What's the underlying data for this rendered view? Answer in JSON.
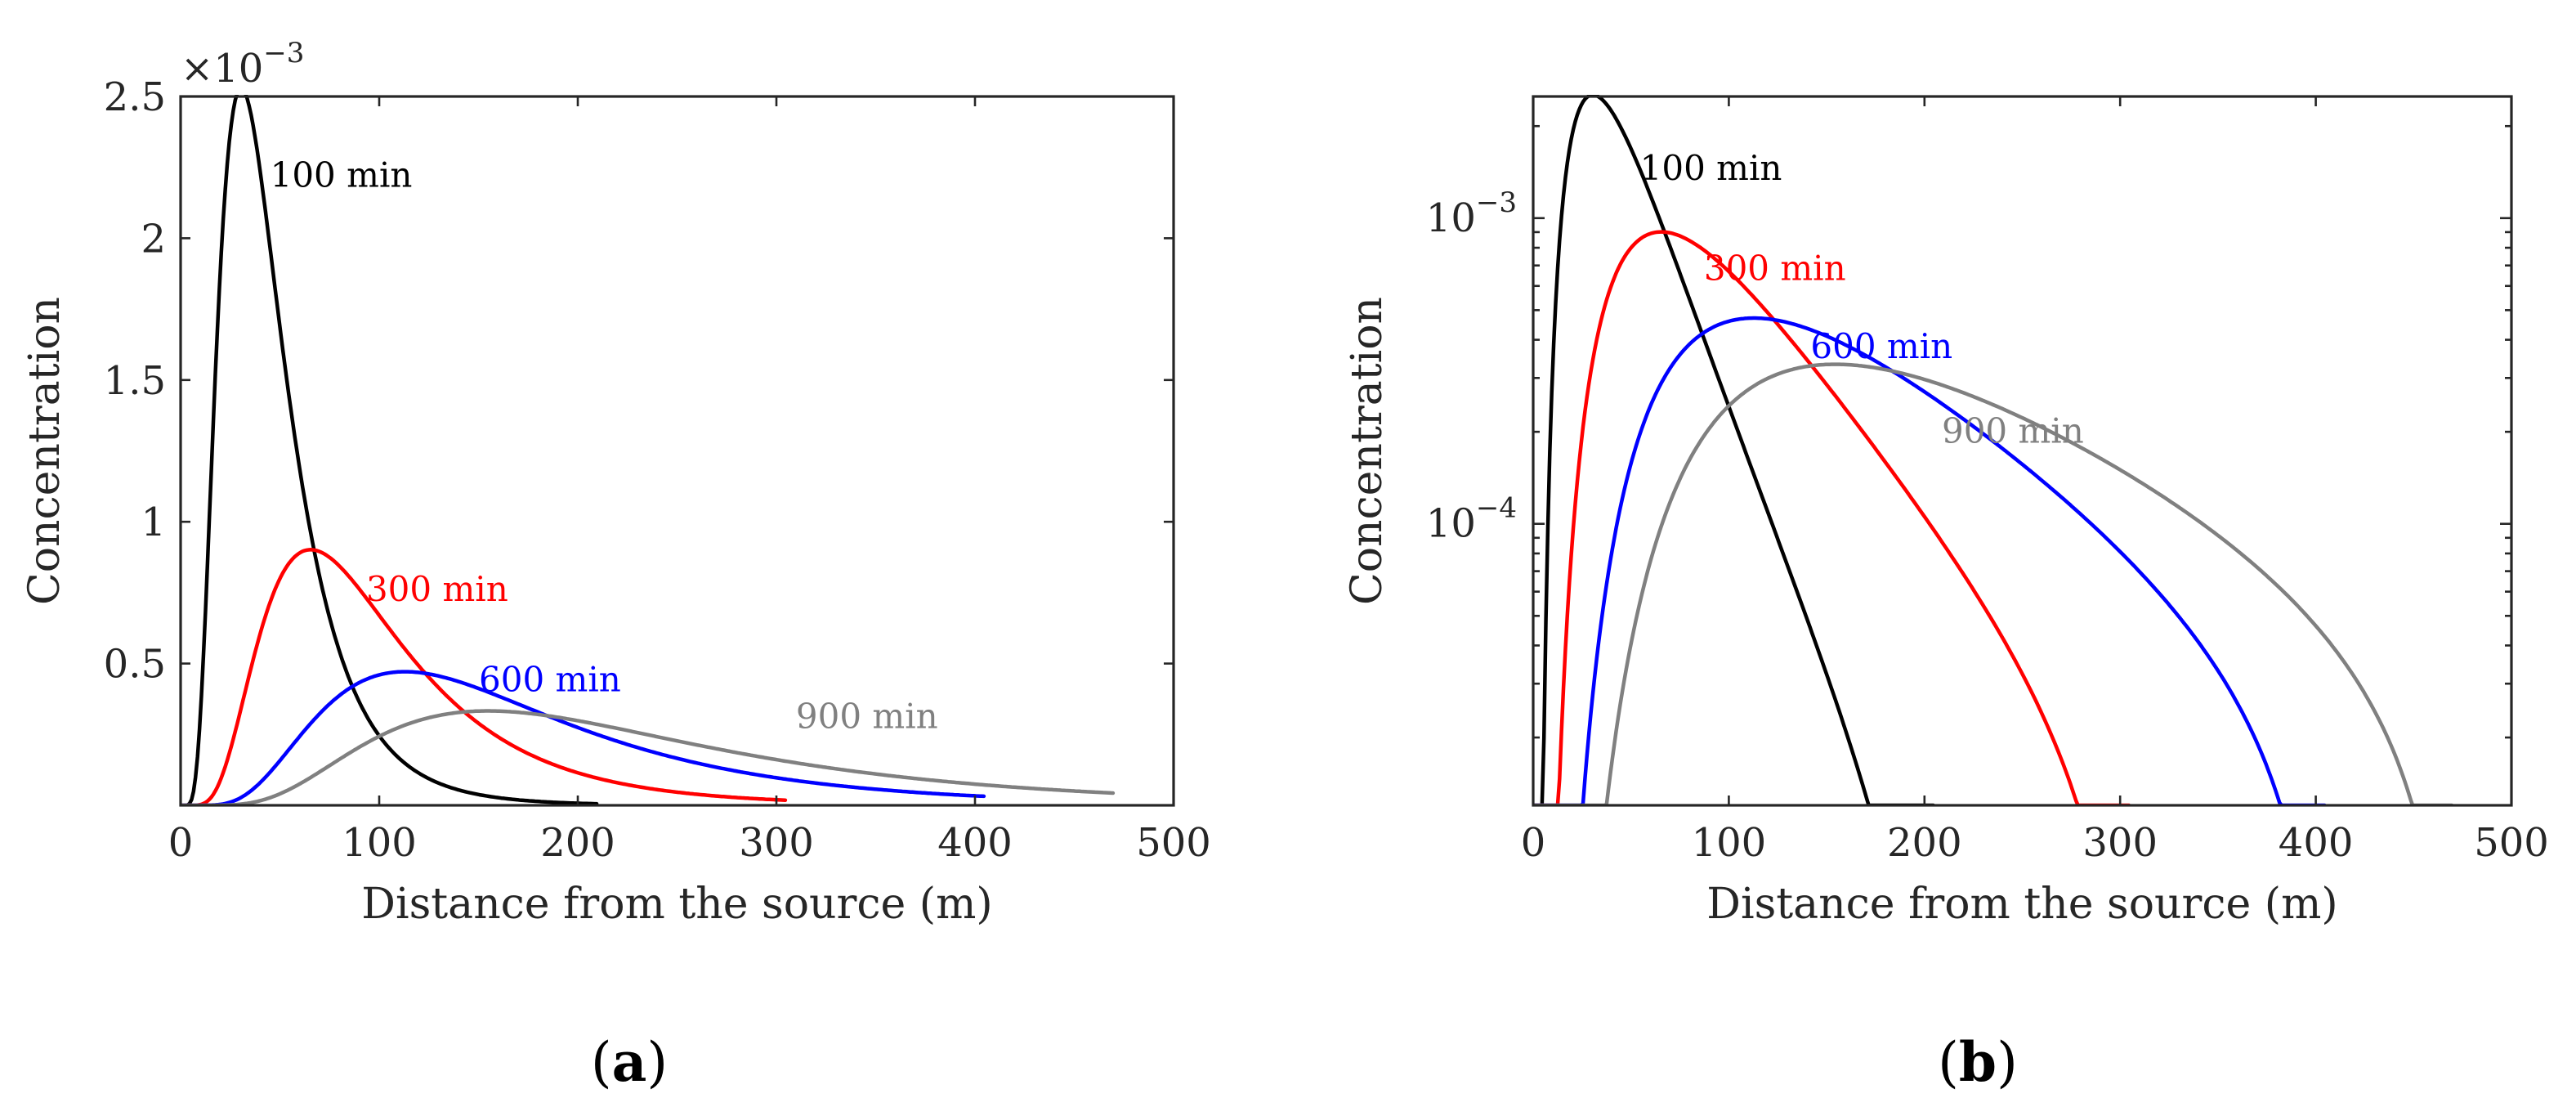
{
  "chart_data": [
    {
      "panel": "(a)",
      "panel_letter": "a",
      "type": "line",
      "xscale": "linear",
      "yscale": "linear",
      "xlabel": "Distance from the source (m)",
      "ylabel": "Concentration",
      "xlim": [
        0,
        500
      ],
      "ylim": [
        0,
        0.0025
      ],
      "x_ticks": [
        0,
        100,
        200,
        300,
        400,
        500
      ],
      "x_tick_labels": [
        "0",
        "100",
        "200",
        "300",
        "400",
        "500"
      ],
      "y_ticks": [
        0.0005,
        0.001,
        0.0015,
        0.002,
        0.0025
      ],
      "y_tick_labels": [
        "0.5",
        "1",
        "1.5",
        "2",
        "2.5"
      ],
      "exponent_label": "×10",
      "exponent_power": "−3",
      "grid": false,
      "series": [
        {
          "name": "100 min",
          "color": "#000000",
          "peak_x": 27,
          "peak_y": 0.00247,
          "end_x": 210
        },
        {
          "name": "300 min",
          "color": "#ff0000",
          "peak_x": 58,
          "peak_y": 0.00088,
          "end_x": 305
        },
        {
          "name": "600 min",
          "color": "#0000ff",
          "peak_x": 100,
          "peak_y": 0.00046,
          "end_x": 405
        },
        {
          "name": "900 min",
          "color": "#808080",
          "peak_x": 137,
          "peak_y": 0.000325,
          "end_x": 470
        }
      ],
      "annotations": [
        {
          "text": "100 min",
          "series": 0
        },
        {
          "text": "300 min",
          "series": 1
        },
        {
          "text": "600 min",
          "series": 2
        },
        {
          "text": "900 min",
          "series": 3
        }
      ]
    },
    {
      "panel": "(b)",
      "panel_letter": "b",
      "type": "line",
      "xscale": "linear",
      "yscale": "log",
      "xlabel": "Distance from the source (m)",
      "ylabel": "Concentration",
      "xlim": [
        0,
        500
      ],
      "ylim": [
        1.2e-05,
        0.0025
      ],
      "x_ticks": [
        0,
        100,
        200,
        300,
        400,
        500
      ],
      "x_tick_labels": [
        "0",
        "100",
        "200",
        "300",
        "400",
        "500"
      ],
      "y_major_ticks": [
        0.0001,
        0.001
      ],
      "y_tick_labels": [
        {
          "base": "10",
          "power": "−4"
        },
        {
          "base": "10",
          "power": "−3"
        }
      ],
      "grid": false,
      "series": [
        {
          "name": "100 min",
          "color": "#000000",
          "peak_x": 27,
          "peak_y": 0.00247,
          "end_x": 205
        },
        {
          "name": "300 min",
          "color": "#ff0000",
          "peak_x": 58,
          "peak_y": 0.00088,
          "end_x": 305
        },
        {
          "name": "600 min",
          "color": "#0000ff",
          "peak_x": 100,
          "peak_y": 0.00046,
          "end_x": 405
        },
        {
          "name": "900 min",
          "color": "#808080",
          "peak_x": 137,
          "peak_y": 0.000325,
          "end_x": 470
        }
      ],
      "annotations": [
        {
          "text": "100 min",
          "series": 0
        },
        {
          "text": "300 min",
          "series": 1
        },
        {
          "text": "600 min",
          "series": 2
        },
        {
          "text": "900 min",
          "series": 3
        }
      ]
    }
  ]
}
